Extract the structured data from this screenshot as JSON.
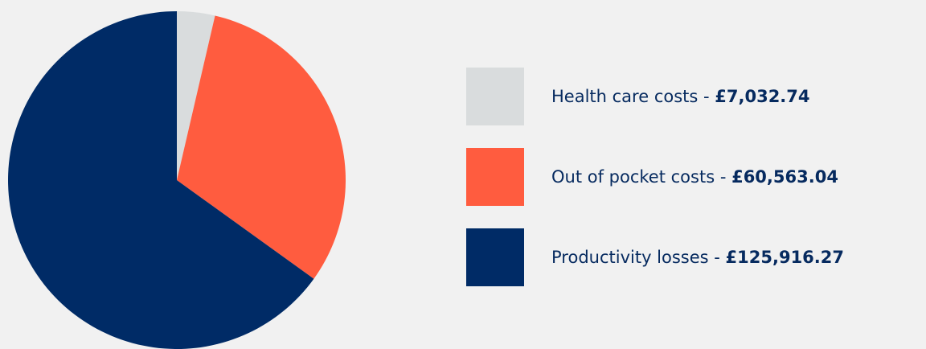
{
  "chart_data": {
    "type": "pie",
    "slices": [
      {
        "label": "Health care costs",
        "display_value": "£7,032.74",
        "value": 7032.74,
        "color": "#d9dcdd"
      },
      {
        "label": "Out of pocket costs",
        "display_value": "£60,563.04",
        "value": 60563.04,
        "color": "#ff5c3f"
      },
      {
        "label": "Productivity losses",
        "display_value": "£125,916.27",
        "value": 125916.27,
        "color": "#002b66"
      }
    ],
    "legend_position": "right",
    "separator": " - "
  },
  "colors": {
    "background": "#f1f1f1",
    "text": "#062a5f"
  }
}
